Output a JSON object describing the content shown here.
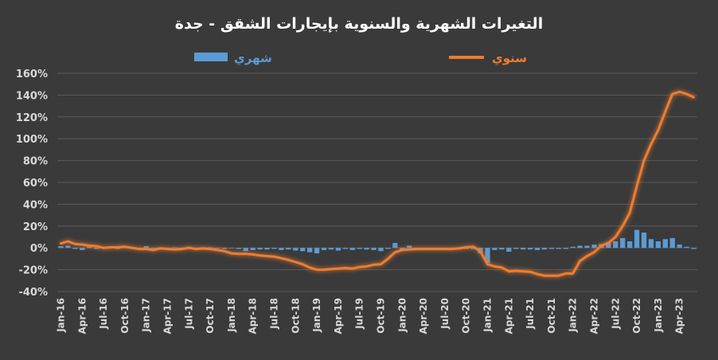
{
  "chart_data": {
    "type": "bar+line",
    "title": "التغيرات الشهرية والسنوية بإيجارات الشقق - جدة",
    "legend": [
      {
        "name": "شهري",
        "color": "#5b9bd5",
        "kind": "bar"
      },
      {
        "name": "سنوي",
        "color": "#ed7d31",
        "kind": "line"
      }
    ],
    "y_ticks": [
      "160%",
      "140%",
      "120%",
      "100%",
      "80%",
      "60%",
      "40%",
      "20%",
      "0%",
      "-20%",
      "-40%"
    ],
    "ylim": [
      -40,
      160
    ],
    "x_ticks": [
      "Jan-16",
      "Apr-16",
      "Jul-16",
      "Oct-16",
      "Jan-17",
      "Apr-17",
      "Jul-17",
      "Oct-17",
      "Jan-18",
      "Apr-18",
      "Jul-18",
      "Oct-18",
      "Jan-19",
      "Apr-19",
      "Jul-19",
      "Oct-19",
      "Jan-20",
      "Apr-20",
      "Jul-20",
      "Oct-20",
      "Jan-21",
      "Apr-21",
      "Jul-21",
      "Oct-21",
      "Jan-22",
      "Apr-22",
      "Jul-22",
      "Oct-22",
      "Jan-23",
      "Apr-23"
    ],
    "series": [
      {
        "name": "شهري",
        "type": "bar",
        "values": [
          1.5,
          2.0,
          -1.0,
          -2.0,
          1.0,
          -1.0,
          0.5,
          -0.5,
          -1.0,
          1.0,
          0.5,
          -0.5,
          1.5,
          -0.5,
          -1.0,
          -1.0,
          0.5,
          -0.5,
          1.0,
          -1.0,
          -1.0,
          0.5,
          -0.5,
          -1.0,
          -0.5,
          -1.0,
          -3.0,
          -2.0,
          -1.5,
          -1.5,
          -1.0,
          -2.0,
          -1.5,
          -2.5,
          -3.0,
          -4.0,
          -5.0,
          -2.0,
          -1.5,
          -2.5,
          -1.0,
          -2.0,
          -1.0,
          -1.5,
          -2.0,
          -3.0,
          -1.0,
          4.5,
          -1.5,
          2.0,
          -0.5,
          -0.5,
          -0.5,
          -0.5,
          -0.5,
          -1.0,
          -0.5,
          -1.0,
          -1.0,
          -5.0,
          -14.0,
          -2.0,
          -1.5,
          -3.5,
          -1.0,
          -1.5,
          -1.5,
          -2.0,
          -1.5,
          -1.0,
          -1.0,
          -1.0,
          1.0,
          2.0,
          2.0,
          3.0,
          3.5,
          5.5,
          6.0,
          9.0,
          6.0,
          16.5,
          14.0,
          8.0,
          6.0,
          8.0,
          9.0,
          3.0,
          1.0,
          -1.0
        ]
      },
      {
        "name": "سنوي",
        "type": "line",
        "values": [
          4.0,
          6.0,
          3.5,
          3.0,
          2.0,
          1.5,
          0.0,
          0.5,
          0.5,
          1.0,
          0.0,
          -1.0,
          -1.0,
          -2.0,
          -0.5,
          -1.0,
          -1.5,
          -1.0,
          0.0,
          -1.0,
          -0.5,
          -1.0,
          -2.0,
          -3.0,
          -5.0,
          -5.5,
          -5.5,
          -6.0,
          -7.0,
          -7.5,
          -8.0,
          -9.5,
          -11.0,
          -13.0,
          -15.0,
          -18.0,
          -20.0,
          -20.0,
          -19.5,
          -19.0,
          -18.5,
          -19.0,
          -17.5,
          -17.0,
          -15.5,
          -15.0,
          -10.0,
          -4.0,
          -2.0,
          -1.5,
          -1.0,
          -1.0,
          -1.0,
          -1.0,
          -1.0,
          -1.0,
          -0.5,
          0.5,
          1.0,
          -3.0,
          -15.0,
          -17.0,
          -18.0,
          -21.5,
          -21.0,
          -21.5,
          -22.0,
          -24.0,
          -25.5,
          -25.5,
          -25.5,
          -23.5,
          -23.5,
          -12.0,
          -7.5,
          -4.0,
          2.0,
          4.5,
          10.0,
          20.0,
          32.0,
          57.0,
          80.0,
          95.0,
          108.0,
          125.0,
          141.0,
          143.0,
          141.0,
          138.0
        ]
      }
    ]
  }
}
